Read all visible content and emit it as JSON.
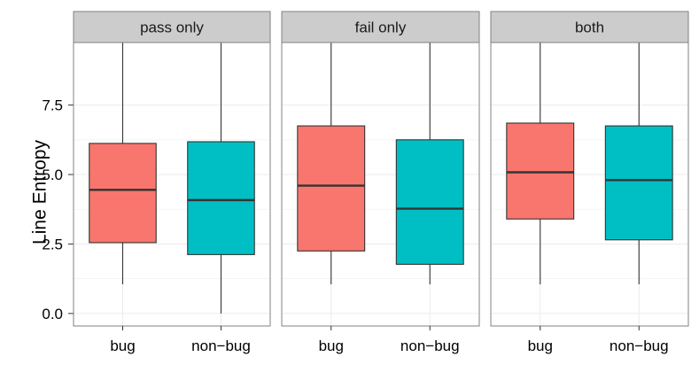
{
  "chart_data": {
    "type": "boxplot",
    "ylabel": "Line Entropy",
    "xlabel": "",
    "ylim": [
      -0.45,
      9.75
    ],
    "yticks": [
      {
        "value": 0.0,
        "label": "0.0"
      },
      {
        "value": 2.5,
        "label": "2.5"
      },
      {
        "value": 5.0,
        "label": "5.0"
      },
      {
        "value": 7.5,
        "label": "7.5"
      }
    ],
    "grid": true,
    "categories": [
      "bug",
      "non−bug"
    ],
    "colors": {
      "bug": "#F8766D",
      "non-bug": "#00BFC4"
    },
    "panels": [
      {
        "title": "pass only",
        "boxes": [
          {
            "category": "bug",
            "min": 1.05,
            "q1": 2.55,
            "median": 4.45,
            "q3": 6.12,
            "max": 9.75
          },
          {
            "category": "non−bug",
            "min": 0.0,
            "q1": 2.12,
            "median": 4.08,
            "q3": 6.18,
            "max": 9.75
          }
        ]
      },
      {
        "title": "fail only",
        "boxes": [
          {
            "category": "bug",
            "min": 1.05,
            "q1": 2.25,
            "median": 4.6,
            "q3": 6.75,
            "max": 9.75
          },
          {
            "category": "non−bug",
            "min": 1.05,
            "q1": 1.77,
            "median": 3.77,
            "q3": 6.25,
            "max": 9.75
          }
        ]
      },
      {
        "title": "both",
        "boxes": [
          {
            "category": "bug",
            "min": 1.05,
            "q1": 3.4,
            "median": 5.08,
            "q3": 6.85,
            "max": 9.75
          },
          {
            "category": "non−bug",
            "min": 1.05,
            "q1": 2.65,
            "median": 4.8,
            "q3": 6.75,
            "max": 9.75
          }
        ]
      }
    ]
  }
}
